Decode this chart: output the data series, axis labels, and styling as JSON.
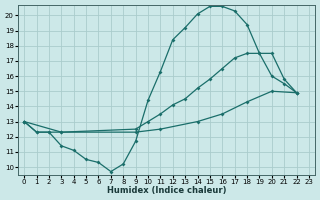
{
  "xlabel": "Humidex (Indice chaleur)",
  "bg_color": "#cce8e8",
  "grid_color": "#aacccc",
  "line_color": "#1a6e6a",
  "xlim": [
    -0.5,
    23.5
  ],
  "ylim": [
    9.5,
    20.7
  ],
  "curve1_x": [
    0,
    1,
    2,
    3,
    4,
    5,
    6,
    7,
    8,
    9,
    10,
    11,
    12,
    13,
    14,
    15,
    16,
    17,
    18,
    19,
    20,
    21,
    22
  ],
  "curve1_y": [
    13.0,
    12.3,
    12.3,
    11.4,
    11.1,
    10.5,
    10.3,
    9.7,
    10.2,
    11.7,
    14.4,
    16.3,
    18.4,
    19.2,
    20.1,
    20.6,
    20.6,
    20.3,
    19.4,
    17.5,
    16.0,
    15.5,
    14.9
  ],
  "curve2_x": [
    0,
    1,
    2,
    3,
    9,
    10,
    11,
    12,
    13,
    14,
    15,
    16,
    17,
    18,
    19,
    20,
    21,
    22
  ],
  "curve2_y": [
    13.0,
    12.3,
    12.3,
    12.3,
    12.5,
    13.0,
    13.5,
    14.1,
    14.5,
    15.2,
    15.8,
    16.5,
    17.2,
    17.5,
    17.5,
    17.5,
    15.8,
    14.9
  ],
  "curve3_x": [
    0,
    3,
    9,
    11,
    14,
    16,
    18,
    20,
    22
  ],
  "curve3_y": [
    13.0,
    12.3,
    12.3,
    12.5,
    13.0,
    13.5,
    14.3,
    15.0,
    14.9
  ]
}
